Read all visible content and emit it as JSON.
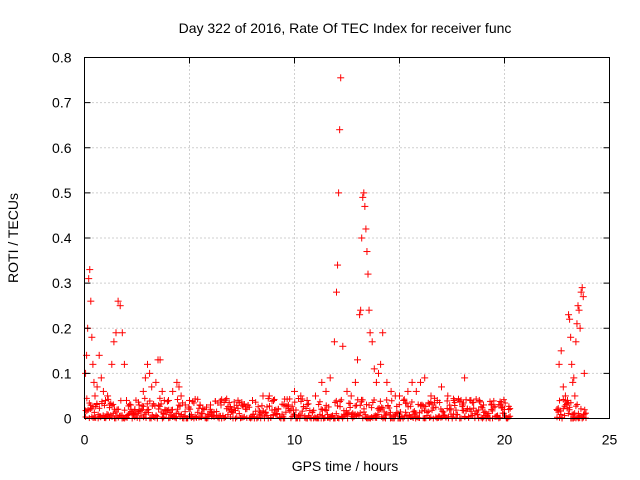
{
  "chart_data": {
    "type": "scatter",
    "title": "Day 322 of 2016, Rate Of TEC Index for receiver func",
    "xlabel": "GPS time / hours",
    "ylabel": "ROTI / TECUs",
    "xlim": [
      0,
      25
    ],
    "ylim": [
      0,
      0.8
    ],
    "xticks": [
      "0",
      "5",
      "10",
      "15",
      "20",
      "25"
    ],
    "yticks": [
      "0",
      "0.1",
      "0.2",
      "0.3",
      "0.4",
      "0.5",
      "0.6",
      "0.7",
      "0.8"
    ],
    "grid": true,
    "marker": "+",
    "color": "#ff0000",
    "series": [
      {
        "x": [
          0.05,
          0.1,
          0.15,
          0.2,
          0.25,
          0.3,
          0.35,
          0.4,
          0.45,
          0.5,
          0.6,
          0.7,
          0.8,
          0.9,
          1.0,
          1.1,
          1.2,
          1.3,
          1.4,
          1.5,
          1.6,
          1.7,
          1.8,
          1.9,
          2.0,
          2.2,
          2.4,
          2.6,
          2.8,
          2.9,
          3.0,
          3.1,
          3.2,
          3.4,
          3.5,
          3.6,
          3.7,
          3.8,
          4.0,
          4.2,
          4.4,
          4.5,
          4.6,
          4.8,
          5.0,
          5.5,
          6.0,
          6.5,
          7.0,
          7.5,
          8.0,
          8.5,
          8.8,
          9.0,
          9.5,
          10.0,
          10.3,
          10.6,
          11.0,
          11.3,
          11.5,
          11.7,
          11.9,
          12.0,
          12.05,
          12.1,
          12.15,
          12.2,
          12.3,
          12.5,
          12.7,
          12.9,
          13.0,
          13.1,
          13.15,
          13.2,
          13.25,
          13.3,
          13.35,
          13.4,
          13.45,
          13.5,
          13.55,
          13.6,
          13.7,
          13.8,
          13.9,
          14.0,
          14.1,
          14.2,
          14.4,
          14.6,
          14.8,
          15.0,
          15.2,
          15.4,
          15.6,
          15.8,
          16.0,
          16.2,
          16.5,
          16.8,
          17.0,
          17.3,
          17.6,
          18.0,
          18.1,
          18.4,
          18.8,
          19.0,
          19.4,
          19.8,
          20.0,
          20.2,
          22.5,
          22.6,
          22.7,
          22.8,
          22.9,
          23.0,
          23.05,
          23.1,
          23.15,
          23.2,
          23.25,
          23.3,
          23.35,
          23.4,
          23.45,
          23.5,
          23.55,
          23.6,
          23.65,
          23.7,
          23.75,
          23.8
        ],
        "y": [
          0.1,
          0.14,
          0.2,
          0.31,
          0.33,
          0.26,
          0.18,
          0.12,
          0.08,
          0.05,
          0.07,
          0.14,
          0.09,
          0.06,
          0.04,
          0.05,
          0.03,
          0.12,
          0.17,
          0.19,
          0.26,
          0.25,
          0.19,
          0.12,
          0.04,
          0.03,
          0.02,
          0.03,
          0.06,
          0.09,
          0.12,
          0.1,
          0.07,
          0.08,
          0.13,
          0.13,
          0.06,
          0.04,
          0.04,
          0.06,
          0.08,
          0.07,
          0.05,
          0.03,
          0.04,
          0.03,
          0.03,
          0.03,
          0.02,
          0.03,
          0.04,
          0.05,
          0.05,
          0.04,
          0.03,
          0.06,
          0.05,
          0.04,
          0.05,
          0.08,
          0.06,
          0.09,
          0.17,
          0.28,
          0.34,
          0.5,
          0.64,
          0.755,
          0.16,
          0.06,
          0.05,
          0.08,
          0.13,
          0.23,
          0.24,
          0.4,
          0.49,
          0.5,
          0.47,
          0.42,
          0.37,
          0.32,
          0.24,
          0.19,
          0.17,
          0.11,
          0.08,
          0.1,
          0.12,
          0.19,
          0.08,
          0.06,
          0.05,
          0.05,
          0.04,
          0.06,
          0.08,
          0.06,
          0.08,
          0.09,
          0.05,
          0.04,
          0.07,
          0.05,
          0.04,
          0.03,
          0.09,
          0.04,
          0.04,
          0.03,
          0.03,
          0.03,
          0.02,
          0.02,
          0.02,
          0.12,
          0.15,
          0.07,
          0.05,
          0.04,
          0.23,
          0.22,
          0.18,
          0.12,
          0.08,
          0.09,
          0.05,
          0.17,
          0.21,
          0.25,
          0.24,
          0.2,
          0.28,
          0.29,
          0.27,
          0.1
        ]
      }
    ]
  }
}
